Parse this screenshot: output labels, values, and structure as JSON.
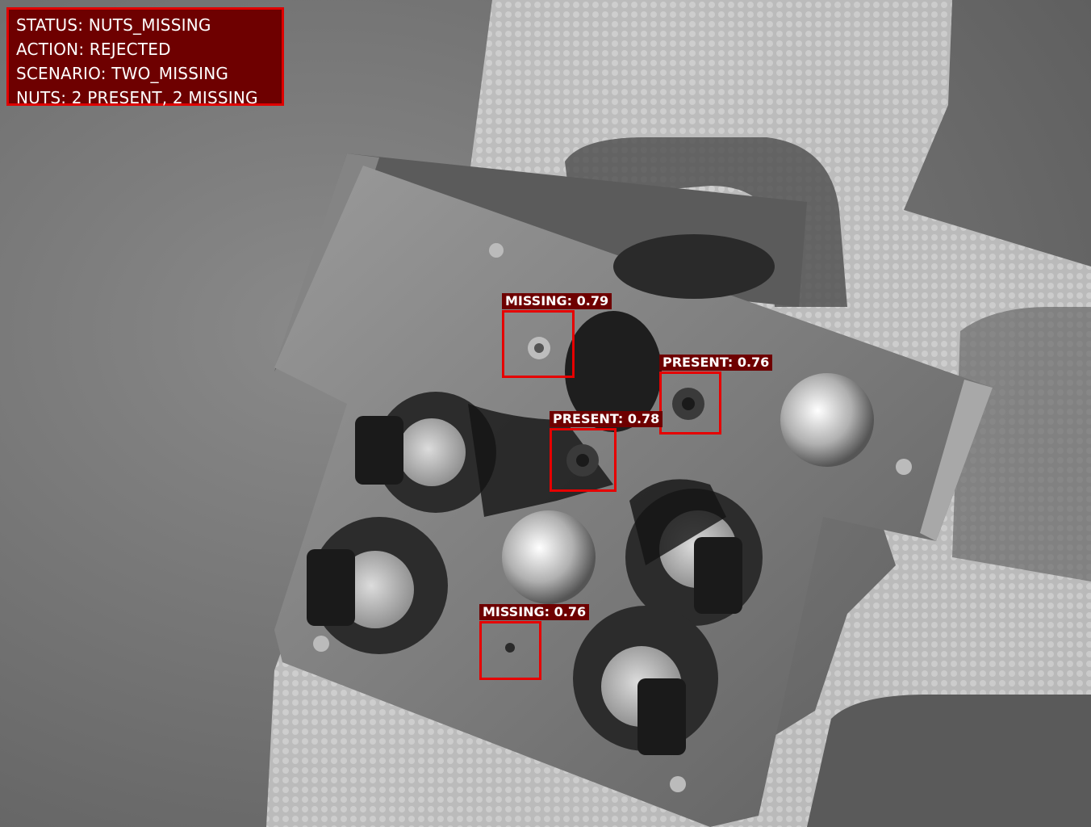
{
  "status": {
    "line1": "STATUS: NUTS_MISSING",
    "line2": "ACTION: REJECTED",
    "line3": "SCENARIO: TWO_MISSING",
    "line4": "NUTS: 2 PRESENT, 2 MISSING"
  },
  "detections": [
    {
      "label": "MISSING: 0.79"
    },
    {
      "label": "PRESENT: 0.76"
    },
    {
      "label": "PRESENT: 0.78"
    },
    {
      "label": "MISSING: 0.76"
    }
  ],
  "colors": {
    "box": "#e60000",
    "label_bg": "#6e0000",
    "text": "#ffffff"
  }
}
